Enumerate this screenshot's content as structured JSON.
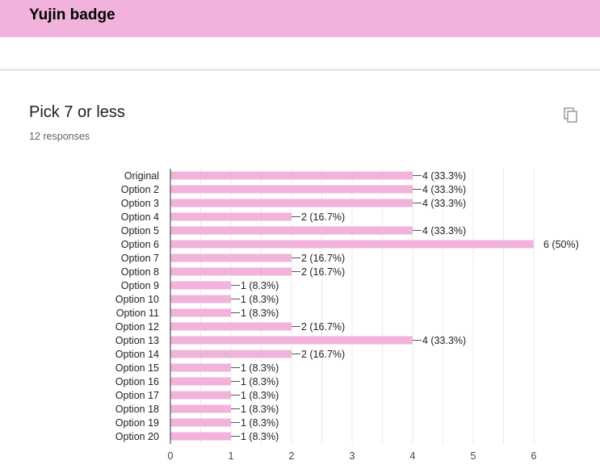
{
  "header": {
    "title": "Yujin badge"
  },
  "question": {
    "title": "Pick 7 or less",
    "responses": "12 responses",
    "copy_icon": "copy-icon"
  },
  "colors": {
    "header": "#f1b3dc",
    "bar": "#f1b3dc",
    "grid": "#ebebeb",
    "axis": "#333333"
  },
  "chart_data": {
    "type": "bar",
    "orientation": "horizontal",
    "categories": [
      "Original",
      "Option 2",
      "Option 3",
      "Option 4",
      "Option 5",
      "Option 6",
      "Option 7",
      "Option 8",
      "Option 9",
      "Option 10",
      "Option 11",
      "Option 12",
      "Option 13",
      "Option 14",
      "Option 15",
      "Option 16",
      "Option 17",
      "Option 18",
      "Option 19",
      "Option 20"
    ],
    "values": [
      4,
      4,
      4,
      2,
      4,
      6,
      2,
      2,
      1,
      1,
      1,
      2,
      4,
      2,
      1,
      1,
      1,
      1,
      1,
      1
    ],
    "data_labels": [
      "4 (33.3%)",
      "4 (33.3%)",
      "4 (33.3%)",
      "2 (16.7%)",
      "4 (33.3%)",
      "6 (50%)",
      "2 (16.7%)",
      "2 (16.7%)",
      "1 (8.3%)",
      "1 (8.3%)",
      "1 (8.3%)",
      "2 (16.7%)",
      "4 (33.3%)",
      "2 (16.7%)",
      "1 (8.3%)",
      "1 (8.3%)",
      "1 (8.3%)",
      "1 (8.3%)",
      "1 (8.3%)",
      "1 (8.3%)"
    ],
    "xlim": [
      0,
      6
    ],
    "xticks": [
      0,
      1,
      2,
      3,
      4,
      5,
      6
    ],
    "grid": true,
    "title": "",
    "xlabel": "",
    "ylabel": ""
  }
}
